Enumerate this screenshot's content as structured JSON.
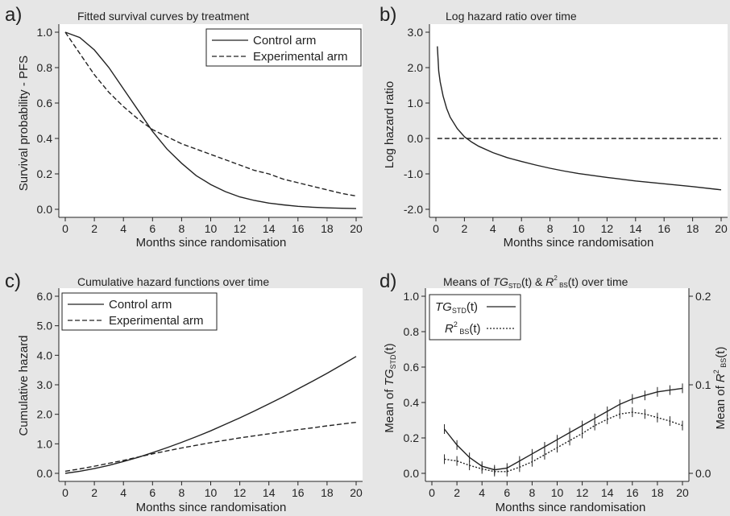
{
  "chart_data": [
    {
      "type": "line",
      "panel": "a)",
      "title": "Fitted survival curves by treatment",
      "xlabel": "Months since randomisation",
      "ylabel": "Survival probability - PFS",
      "xlim": [
        0,
        20
      ],
      "ylim": [
        0,
        1
      ],
      "xticks": [
        "0",
        "2",
        "4",
        "6",
        "8",
        "10",
        "12",
        "14",
        "16",
        "18",
        "20"
      ],
      "yticks": [
        "0.0",
        "0.2",
        "0.4",
        "0.6",
        "0.8",
        "1.0"
      ],
      "legend": "top-right",
      "grid": false,
      "x": [
        0,
        1,
        2,
        3,
        4,
        5,
        6,
        7,
        8,
        9,
        10,
        11,
        12,
        13,
        14,
        15,
        16,
        17,
        18,
        19,
        20
      ],
      "series": [
        {
          "name": "Control arm",
          "style": "solid",
          "values": [
            1.0,
            0.97,
            0.9,
            0.8,
            0.68,
            0.56,
            0.44,
            0.34,
            0.26,
            0.19,
            0.14,
            0.1,
            0.07,
            0.05,
            0.035,
            0.025,
            0.017,
            0.012,
            0.008,
            0.006,
            0.004
          ]
        },
        {
          "name": "Experimental arm",
          "style": "dashed",
          "values": [
            1.0,
            0.88,
            0.76,
            0.66,
            0.58,
            0.51,
            0.45,
            0.41,
            0.37,
            0.34,
            0.31,
            0.28,
            0.25,
            0.22,
            0.2,
            0.17,
            0.15,
            0.13,
            0.11,
            0.09,
            0.075
          ]
        }
      ]
    },
    {
      "type": "line",
      "panel": "b)",
      "title": "Log hazard ratio over time",
      "xlabel": "Months since randomisation",
      "ylabel": "Log hazard ratio",
      "xlim": [
        0,
        20
      ],
      "ylim": [
        -2,
        3
      ],
      "xticks": [
        "0",
        "2",
        "4",
        "6",
        "8",
        "10",
        "12",
        "14",
        "16",
        "18",
        "20"
      ],
      "yticks": [
        "-2.0",
        "-1.0",
        "0.0",
        "1.0",
        "2.0",
        "3.0"
      ],
      "grid": false,
      "reference_line": 0,
      "x": [
        0.1,
        0.2,
        0.3,
        0.5,
        0.75,
        1,
        1.5,
        2,
        2.5,
        3,
        4,
        5,
        6,
        7,
        8,
        9,
        10,
        12,
        14,
        16,
        18,
        20
      ],
      "series": [
        {
          "style": "solid",
          "values": [
            2.6,
            1.9,
            1.6,
            1.2,
            0.85,
            0.6,
            0.28,
            0.05,
            -0.1,
            -0.22,
            -0.4,
            -0.54,
            -0.65,
            -0.75,
            -0.84,
            -0.92,
            -0.99,
            -1.1,
            -1.2,
            -1.28,
            -1.36,
            -1.45
          ]
        },
        {
          "style": "dashed",
          "values": [
            0,
            0,
            0,
            0,
            0,
            0,
            0,
            0,
            0,
            0,
            0,
            0,
            0,
            0,
            0,
            0,
            0,
            0,
            0,
            0,
            0,
            0
          ]
        }
      ]
    },
    {
      "type": "line",
      "panel": "c)",
      "title": "Cumulative hazard functions over time",
      "xlabel": "Months since randomisation",
      "ylabel": "Cumulative hazard",
      "xlim": [
        0,
        20
      ],
      "ylim": [
        0,
        6
      ],
      "xticks": [
        "0",
        "2",
        "4",
        "6",
        "8",
        "10",
        "12",
        "14",
        "16",
        "18",
        "20"
      ],
      "yticks": [
        "0.0",
        "1.0",
        "2.0",
        "3.0",
        "4.0",
        "5.0",
        "6.0"
      ],
      "legend": "top-left",
      "grid": false,
      "x": [
        0,
        1,
        2,
        3,
        4,
        5,
        6,
        7,
        8,
        9,
        10,
        11,
        12,
        13,
        14,
        15,
        16,
        17,
        18,
        19,
        20
      ],
      "series": [
        {
          "name": "Control arm",
          "style": "solid",
          "values": [
            0,
            0.07,
            0.16,
            0.27,
            0.4,
            0.54,
            0.7,
            0.87,
            1.05,
            1.24,
            1.44,
            1.66,
            1.88,
            2.11,
            2.35,
            2.6,
            2.86,
            3.12,
            3.39,
            3.67,
            3.96
          ]
        },
        {
          "name": "Experimental arm",
          "style": "dashed",
          "values": [
            0.07,
            0.15,
            0.24,
            0.34,
            0.44,
            0.55,
            0.66,
            0.76,
            0.86,
            0.95,
            1.04,
            1.12,
            1.2,
            1.27,
            1.34,
            1.41,
            1.48,
            1.54,
            1.61,
            1.67,
            1.73
          ]
        }
      ]
    },
    {
      "type": "line",
      "panel": "d)",
      "title": "Means of TG_STD(t) & R²_BS(t) over time",
      "title_parts": {
        "a": "Means of ",
        "b": "TG",
        "c": "STD",
        "d": "(t) & ",
        "e": "R",
        "f": "2",
        "g": " BS",
        "h": "(t) over time"
      },
      "xlabel": "Months since randomisation",
      "ylabel": "Mean of TG_STD(t)",
      "ylabel_parts": {
        "a": "Mean of ",
        "b": "TG",
        "c": "STD",
        "d": "(t)"
      },
      "y2label": "Mean of R²_BS(t)",
      "y2label_parts": {
        "a": "Mean of ",
        "b": "R",
        "c": "2",
        "d": " BS",
        "e": "(t)"
      },
      "xlim": [
        0,
        20
      ],
      "ylim": [
        0,
        1
      ],
      "y2lim": [
        0,
        0.2
      ],
      "xticks": [
        "0",
        "2",
        "4",
        "6",
        "8",
        "10",
        "12",
        "14",
        "16",
        "18",
        "20"
      ],
      "yticks": [
        "0.0",
        "0.2",
        "0.4",
        "0.6",
        "0.8",
        "1.0"
      ],
      "y2ticks": [
        "0.0",
        "0.1",
        "0.2"
      ],
      "legend": "top-left",
      "grid": false,
      "x": [
        1,
        2,
        3,
        4,
        5,
        6,
        7,
        8,
        9,
        10,
        11,
        12,
        13,
        14,
        15,
        16,
        17,
        18,
        19,
        20
      ],
      "series": [
        {
          "name": "TG_STD(t)",
          "name_parts": {
            "a": "TG",
            "b": "STD",
            "c": "(t)"
          },
          "style": "solid",
          "axis": "left",
          "values": [
            0.25,
            0.16,
            0.09,
            0.04,
            0.02,
            0.03,
            0.07,
            0.11,
            0.15,
            0.19,
            0.23,
            0.27,
            0.31,
            0.35,
            0.39,
            0.42,
            0.44,
            0.46,
            0.47,
            0.48
          ]
        },
        {
          "name": "R²_BS(t)",
          "name_parts": {
            "a": "R",
            "b": "2",
            "c": " BS",
            "d": "(t)"
          },
          "style": "dotted",
          "axis": "right",
          "values": [
            0.016,
            0.014,
            0.009,
            0.005,
            0.002,
            0.002,
            0.007,
            0.013,
            0.021,
            0.029,
            0.037,
            0.045,
            0.054,
            0.061,
            0.067,
            0.069,
            0.067,
            0.063,
            0.059,
            0.054
          ]
        }
      ]
    }
  ]
}
